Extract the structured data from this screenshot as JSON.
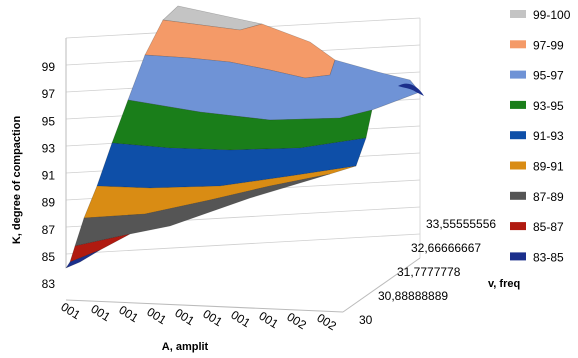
{
  "chart_data": {
    "type": "surface",
    "zlabel": "K, degree of  compaction",
    "xlabel": "A, amplit",
    "ylabel": "v, freq",
    "zlim": [
      83,
      101
    ],
    "z_ticks": [
      "83",
      "85",
      "87",
      "89",
      "91",
      "93",
      "95",
      "97",
      "99"
    ],
    "x_ticks": [
      "001",
      "001",
      "001",
      "001",
      "001",
      "001",
      "001",
      "001",
      "002",
      "002"
    ],
    "y_ticks": [
      "30",
      "30,88888889",
      "31,7777778",
      "32,66666667",
      "33,55555556"
    ],
    "legend_position": "right",
    "legend": [
      {
        "label": "99-100",
        "color": "#C4C4C4"
      },
      {
        "label": "97-99",
        "color": "#F49A68"
      },
      {
        "label": "95-97",
        "color": "#6F93D6"
      },
      {
        "label": "93-95",
        "color": "#1A7E1A"
      },
      {
        "label": "91-93",
        "color": "#0E4FA8"
      },
      {
        "label": "89-91",
        "color": "#D98C14"
      },
      {
        "label": "87-89",
        "color": "#555555"
      },
      {
        "label": "85-87",
        "color": "#B01A10"
      },
      {
        "label": "83-85",
        "color": "#1B2F8C"
      }
    ]
  }
}
